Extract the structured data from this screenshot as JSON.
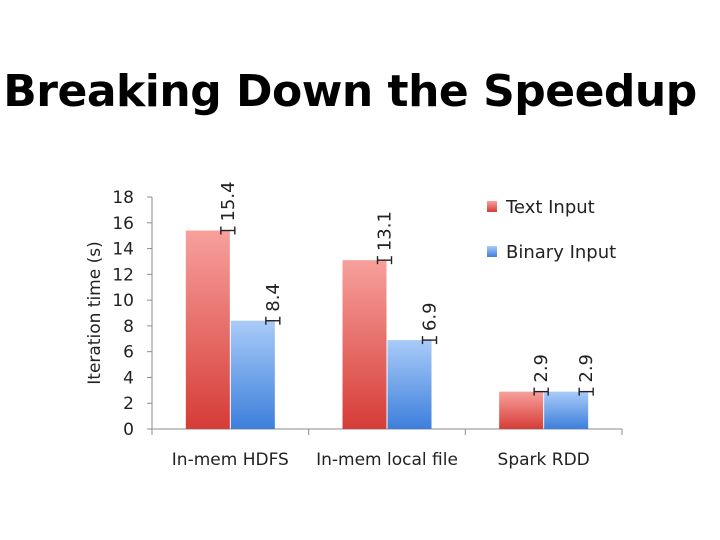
{
  "slide": {
    "title": "Breaking Down the Speedup"
  },
  "chart_data": {
    "type": "bar",
    "ylabel": "Iteration time (s)",
    "xlabel": "",
    "ylim": [
      0,
      18
    ],
    "yticks": [
      0,
      2,
      4,
      6,
      8,
      10,
      12,
      14,
      16,
      18
    ],
    "categories": [
      "In-mem HDFS",
      "In-mem local file",
      "Spark RDD"
    ],
    "series": [
      {
        "name": "Text Input",
        "values": [
          15.4,
          13.1,
          2.9
        ],
        "color": "#e04a48"
      },
      {
        "name": "Binary Input",
        "values": [
          8.4,
          6.9,
          2.9
        ],
        "color": "#5f93e6"
      }
    ],
    "data_labels": {
      "orientation": "rotated-vertical",
      "error_bars": true
    },
    "legend": "top-right",
    "grid": false
  }
}
